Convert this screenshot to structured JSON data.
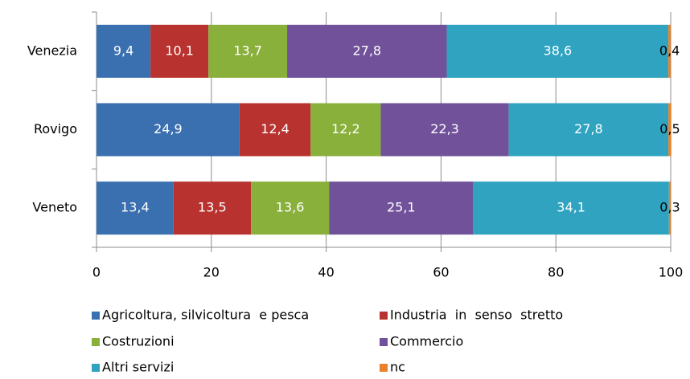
{
  "chart_data": {
    "type": "stacked-bar-horizontal",
    "categories": [
      "Venezia",
      "Rovigo",
      "Veneto"
    ],
    "series": [
      {
        "name": "Agricoltura, silvicoltura  e pesca",
        "color": "#3a6fb0",
        "values": [
          9.4,
          24.9,
          13.4
        ],
        "value_labels": [
          "9,4",
          "24,9",
          "13,4"
        ]
      },
      {
        "name": "Industria  in  senso  stretto",
        "color": "#b83330",
        "values": [
          10.1,
          12.4,
          13.5
        ],
        "value_labels": [
          "10,1",
          "12,4",
          "13,5"
        ]
      },
      {
        "name": "Costruzioni",
        "color": "#8ab03c",
        "values": [
          13.7,
          12.2,
          13.6
        ],
        "value_labels": [
          "13,7",
          "12,2",
          "13,6"
        ]
      },
      {
        "name": "Commercio",
        "color": "#71519a",
        "values": [
          27.8,
          22.3,
          25.1
        ],
        "value_labels": [
          "27,8",
          "22,3",
          "25,1"
        ]
      },
      {
        "name": "Altri servizi",
        "color": "#2fa3c0",
        "values": [
          38.6,
          27.8,
          34.1
        ],
        "value_labels": [
          "38,6",
          "27,8",
          "34,1"
        ]
      },
      {
        "name": "nc",
        "color": "#e8812a",
        "values": [
          0.4,
          0.5,
          0.3
        ],
        "value_labels": [
          "0,4",
          "0,5",
          "0,3"
        ]
      }
    ],
    "xlim": [
      0,
      100
    ],
    "xticks": [
      0,
      20,
      40,
      60,
      80,
      100
    ],
    "grid": true,
    "legend": "bottom"
  }
}
